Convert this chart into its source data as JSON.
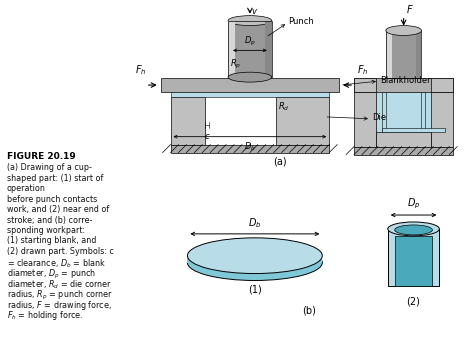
{
  "bg_color": "#ffffff",
  "gray_light": "#c0c0c0",
  "gray_mid": "#999999",
  "gray_dark": "#707070",
  "gray_blankholder": "#b0b0b0",
  "cyan_light": "#b8dde8",
  "cyan_mid": "#7ec8d8",
  "cyan_dark": "#4aaabb",
  "hatch_color": "#aaaaaa",
  "text_color": "#111111",
  "figure_title": "FIGURE 20.19",
  "caption_lines": [
    "(a) Drawing of a cup-",
    "shaped part: (1) start of",
    "operation",
    "before punch contacts",
    "work, and (2) near end of",
    "stroke; and (b) corre-",
    "sponding workpart:",
    "(1) starting blank, and",
    "(2) drawn part. Symbols: c",
    "= clearance, $D_b$ = blank",
    "diameter, $D_p$ = punch",
    "diameter, $R_d$ = die corner",
    "radius, $R_p$ = punch corner",
    "radius, $F$ = drawing force,",
    "$F_h$ = holding force."
  ]
}
